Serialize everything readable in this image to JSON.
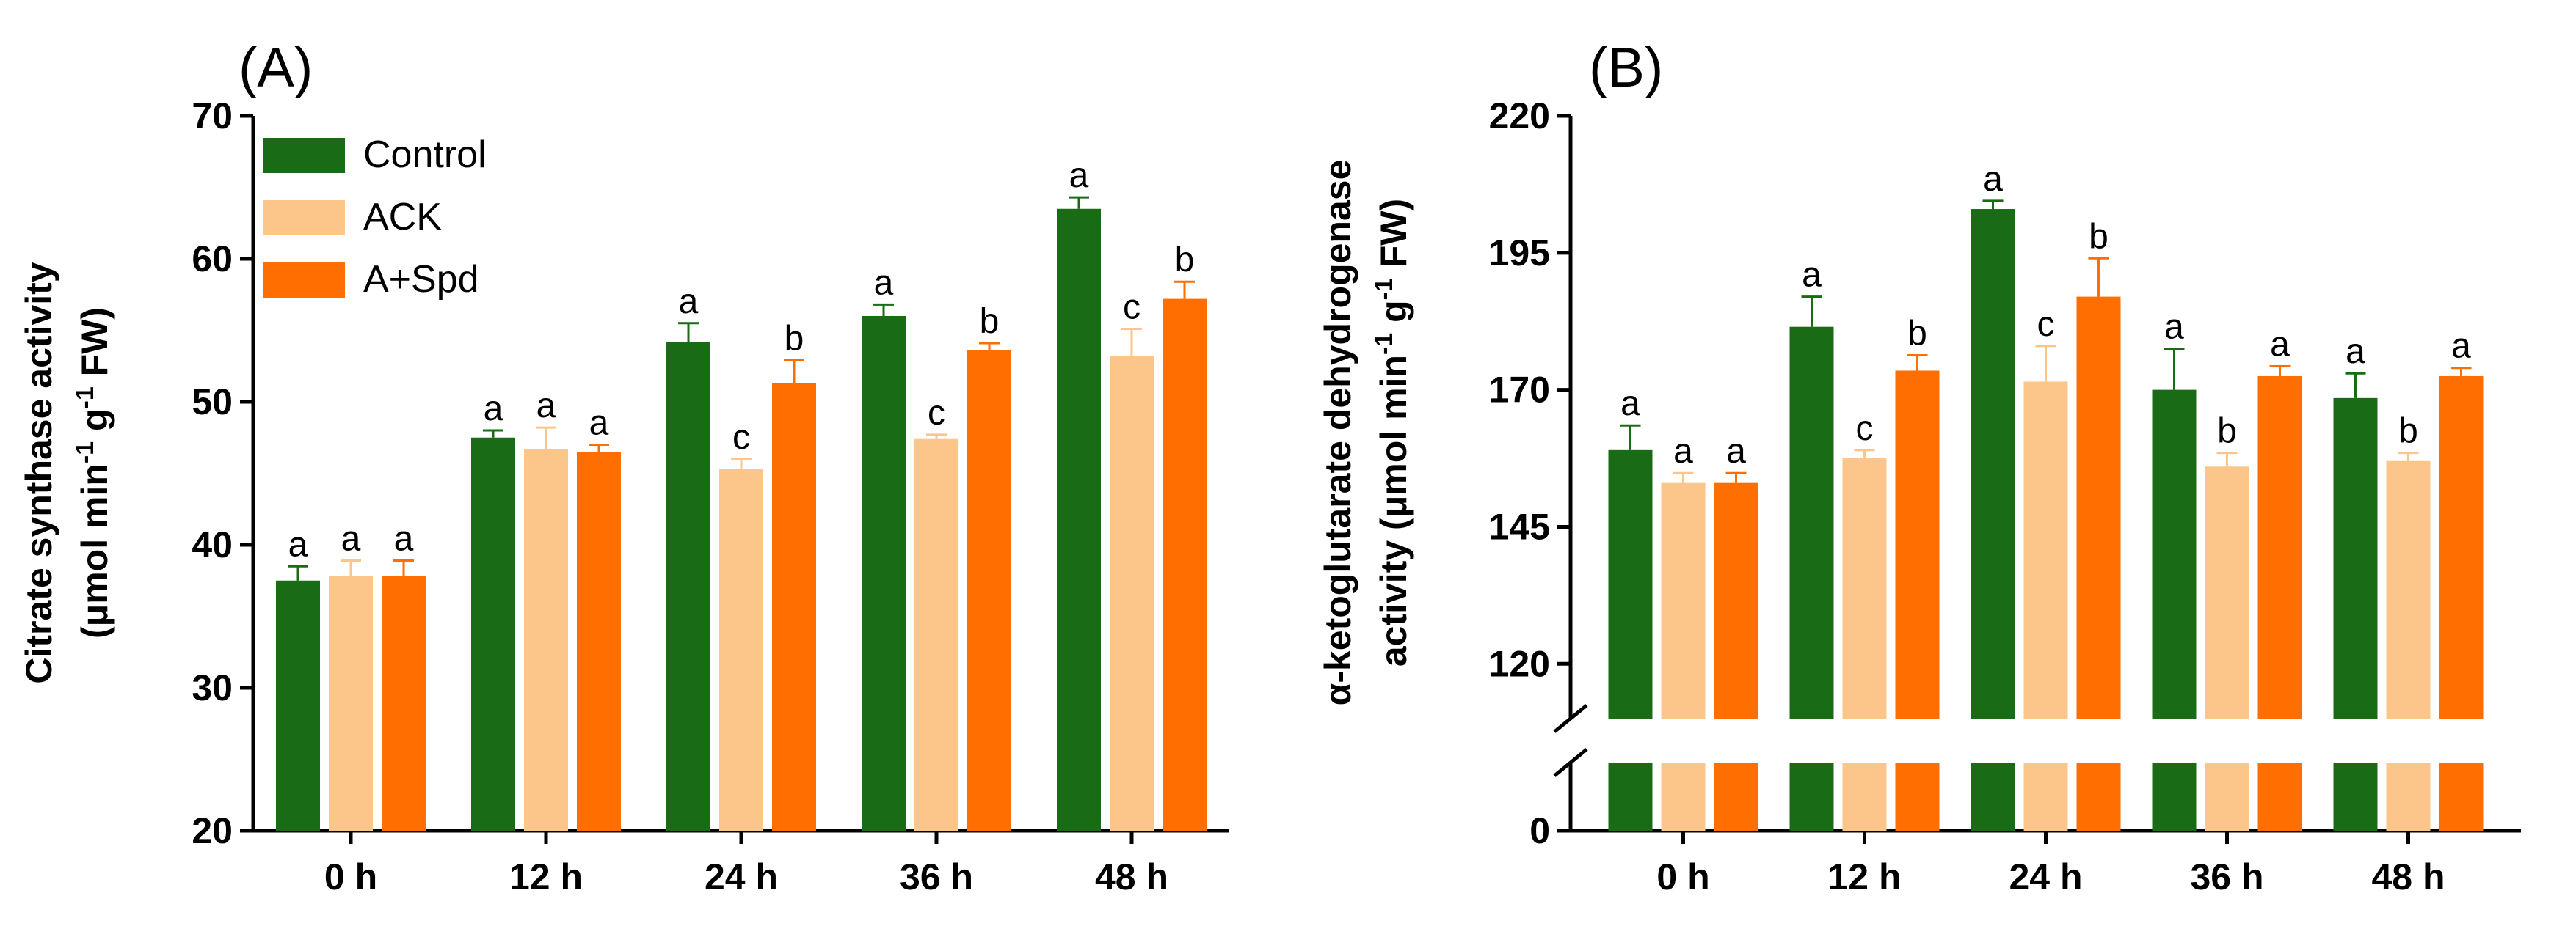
{
  "chart_data": [
    {
      "type": "bar",
      "panel_label": "(A)",
      "categories": [
        "0 h",
        "12 h",
        "24 h",
        "36 h",
        "48 h"
      ],
      "ylabel_line1": "Citrate synthase activity",
      "ylabel_line2": "(μmol min",
      "ylabel_sup1": "-1",
      "ylabel_mid": " g",
      "ylabel_sup2": "-1",
      "ylabel_end": " FW)",
      "ylim": [
        20,
        70
      ],
      "yticks": [
        20,
        30,
        40,
        50,
        60,
        70
      ],
      "legend": [
        "Control",
        "ACK",
        "A+Spd"
      ],
      "series": [
        {
          "name": "Control",
          "color": "#1a6b16",
          "values": [
            37.5,
            47.5,
            54.2,
            56.0,
            63.5
          ],
          "errors": [
            1.0,
            0.5,
            1.3,
            0.8,
            0.8
          ],
          "labels": [
            "a",
            "a",
            "a",
            "a",
            "a"
          ]
        },
        {
          "name": "ACK",
          "color": "#fcc58a",
          "values": [
            37.8,
            46.7,
            45.3,
            47.4,
            53.2
          ],
          "errors": [
            1.1,
            1.5,
            0.7,
            0.3,
            1.9
          ],
          "labels": [
            "a",
            "a",
            "c",
            "c",
            "c"
          ]
        },
        {
          "name": "A+Spd",
          "color": "#ff6e00",
          "values": [
            37.8,
            46.5,
            51.3,
            53.6,
            57.2
          ],
          "errors": [
            1.1,
            0.5,
            1.6,
            0.5,
            1.2
          ],
          "labels": [
            "a",
            "a",
            "b",
            "b",
            "b"
          ]
        }
      ]
    },
    {
      "type": "bar",
      "panel_label": "(B)",
      "categories": [
        "0 h",
        "12 h",
        "24 h",
        "36 h",
        "48 h"
      ],
      "ylabel_line1": "α-ketoglutarate dehydrogenase",
      "ylabel_line2": "activity (μmol min",
      "ylabel_sup1": "-1",
      "ylabel_mid": " g",
      "ylabel_sup2": "-1",
      "ylabel_end": " FW)",
      "ylim": [
        0,
        220
      ],
      "axis_break": [
        0,
        110
      ],
      "yticks": [
        0,
        120,
        145,
        170,
        195,
        220
      ],
      "series": [
        {
          "name": "Control",
          "color": "#1a6b16",
          "values": [
            159.0,
            181.5,
            203.0,
            170.0,
            168.5
          ],
          "errors": [
            4.5,
            5.5,
            1.5,
            7.5,
            4.5
          ],
          "labels": [
            "a",
            "a",
            "a",
            "a",
            "a"
          ]
        },
        {
          "name": "ACK",
          "color": "#fcc58a",
          "values": [
            153.0,
            157.5,
            171.5,
            156.0,
            157.0
          ],
          "errors": [
            1.8,
            1.5,
            6.5,
            2.5,
            1.5
          ],
          "labels": [
            "a",
            "c",
            "c",
            "b",
            "b"
          ]
        },
        {
          "name": "A+Spd",
          "color": "#ff6e00",
          "values": [
            153.0,
            173.5,
            187.0,
            172.5,
            172.5
          ],
          "errors": [
            1.8,
            2.8,
            7.0,
            1.8,
            1.5
          ],
          "labels": [
            "a",
            "b",
            "b",
            "a",
            "a"
          ]
        }
      ]
    }
  ]
}
